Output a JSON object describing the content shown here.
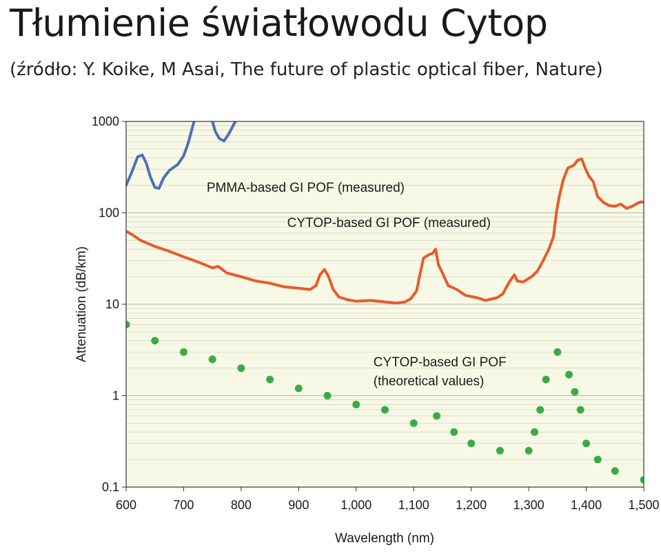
{
  "title": "Tłumienie światłowodu Cytop",
  "subtitle": "(źródło: Y. Koike, M Asai, The future of plastic optical fiber, Nature)",
  "chart_data": {
    "type": "line",
    "xlabel": "Wavelength (nm)",
    "ylabel": "Attenuation (dB/km)",
    "xlim": [
      600,
      1500
    ],
    "ylim": [
      0.1,
      1000
    ],
    "yscale": "log",
    "grid": true,
    "x_ticks": [
      "600",
      "700",
      "800",
      "900",
      "1,000",
      "1,100",
      "1,200",
      "1,300",
      "1,400",
      "1,500"
    ],
    "x_tick_values": [
      600,
      700,
      800,
      900,
      1000,
      1100,
      1200,
      1300,
      1400,
      1500
    ],
    "y_ticks": [
      "0.1",
      "1",
      "10",
      "100",
      "1000"
    ],
    "y_tick_values": [
      0.1,
      1,
      10,
      100,
      1000
    ],
    "annotations": [
      {
        "text": "PMMA-based GI POF (measured)",
        "x": 740,
        "y": 170
      },
      {
        "text": "CYTOP-based GI POF (measured)",
        "x": 880,
        "y": 70
      },
      {
        "text": "CYTOP-based GI POF",
        "x": 1030,
        "y": 2.1
      },
      {
        "text": "(theoretical values)",
        "x": 1030,
        "y": 1.3
      }
    ],
    "series": [
      {
        "name": "PMMA-based GI POF (measured)",
        "color": "#4a73b5",
        "style": "line",
        "segments": [
          [
            [
              600,
              200
            ],
            [
              610,
              280
            ],
            [
              620,
              410
            ],
            [
              628,
              430
            ],
            [
              635,
              350
            ],
            [
              642,
              250
            ],
            [
              650,
              190
            ],
            [
              657,
              185
            ],
            [
              665,
              240
            ],
            [
              675,
              290
            ],
            [
              690,
              340
            ],
            [
              700,
              420
            ],
            [
              708,
              580
            ],
            [
              715,
              850
            ],
            [
              718,
              1000
            ]
          ],
          [
            [
              750,
              1000
            ],
            [
              755,
              780
            ],
            [
              762,
              650
            ],
            [
              770,
              610
            ],
            [
              778,
              720
            ],
            [
              786,
              900
            ],
            [
              790,
              1000
            ]
          ]
        ]
      },
      {
        "name": "CYTOP-based GI POF (measured)",
        "color": "#e85a2a",
        "style": "line",
        "points": [
          [
            600,
            63
          ],
          [
            610,
            58
          ],
          [
            625,
            50
          ],
          [
            650,
            43
          ],
          [
            675,
            38
          ],
          [
            700,
            33
          ],
          [
            725,
            29
          ],
          [
            750,
            25
          ],
          [
            760,
            26
          ],
          [
            775,
            22
          ],
          [
            800,
            20
          ],
          [
            825,
            18
          ],
          [
            850,
            17
          ],
          [
            875,
            15.5
          ],
          [
            900,
            15
          ],
          [
            920,
            14.5
          ],
          [
            930,
            16
          ],
          [
            937,
            21
          ],
          [
            945,
            24
          ],
          [
            952,
            20
          ],
          [
            960,
            14.5
          ],
          [
            970,
            12
          ],
          [
            985,
            11.2
          ],
          [
            1000,
            10.8
          ],
          [
            1025,
            11
          ],
          [
            1050,
            10.6
          ],
          [
            1070,
            10.3
          ],
          [
            1085,
            10.6
          ],
          [
            1095,
            11.5
          ],
          [
            1105,
            14
          ],
          [
            1110,
            20
          ],
          [
            1117,
            32
          ],
          [
            1127,
            35
          ],
          [
            1133,
            36
          ],
          [
            1138,
            40
          ],
          [
            1143,
            27
          ],
          [
            1150,
            22
          ],
          [
            1160,
            16
          ],
          [
            1175,
            14.5
          ],
          [
            1190,
            12.5
          ],
          [
            1210,
            11.8
          ],
          [
            1225,
            11
          ],
          [
            1235,
            11.4
          ],
          [
            1245,
            11.8
          ],
          [
            1255,
            13
          ],
          [
            1265,
            17
          ],
          [
            1270,
            19
          ],
          [
            1275,
            21
          ],
          [
            1280,
            18
          ],
          [
            1290,
            17.5
          ],
          [
            1305,
            20
          ],
          [
            1315,
            23
          ],
          [
            1325,
            30
          ],
          [
            1335,
            40
          ],
          [
            1343,
            55
          ],
          [
            1348,
            100
          ],
          [
            1353,
            150
          ],
          [
            1360,
            230
          ],
          [
            1368,
            310
          ],
          [
            1378,
            330
          ],
          [
            1385,
            375
          ],
          [
            1392,
            390
          ],
          [
            1398,
            310
          ],
          [
            1405,
            250
          ],
          [
            1412,
            220
          ],
          [
            1420,
            150
          ],
          [
            1430,
            130
          ],
          [
            1440,
            120
          ],
          [
            1450,
            118
          ],
          [
            1460,
            125
          ],
          [
            1470,
            112
          ],
          [
            1480,
            118
          ],
          [
            1490,
            128
          ],
          [
            1495,
            132
          ],
          [
            1500,
            130
          ]
        ]
      },
      {
        "name": "CYTOP-based GI POF (theoretical values)",
        "color": "#3aab48",
        "style": "scatter",
        "points": [
          [
            600,
            6
          ],
          [
            650,
            4
          ],
          [
            700,
            3
          ],
          [
            750,
            2.5
          ],
          [
            800,
            2
          ],
          [
            850,
            1.5
          ],
          [
            900,
            1.2
          ],
          [
            950,
            1
          ],
          [
            1000,
            0.8
          ],
          [
            1050,
            0.7
          ],
          [
            1100,
            0.5
          ],
          [
            1140,
            0.6
          ],
          [
            1170,
            0.4
          ],
          [
            1200,
            0.3
          ],
          [
            1250,
            0.25
          ],
          [
            1300,
            0.25
          ],
          [
            1310,
            0.4
          ],
          [
            1320,
            0.7
          ],
          [
            1330,
            1.5
          ],
          [
            1350,
            3
          ],
          [
            1370,
            1.7
          ],
          [
            1380,
            1.1
          ],
          [
            1390,
            0.7
          ],
          [
            1400,
            0.3
          ],
          [
            1420,
            0.2
          ],
          [
            1450,
            0.15
          ],
          [
            1500,
            0.12
          ]
        ]
      }
    ]
  }
}
